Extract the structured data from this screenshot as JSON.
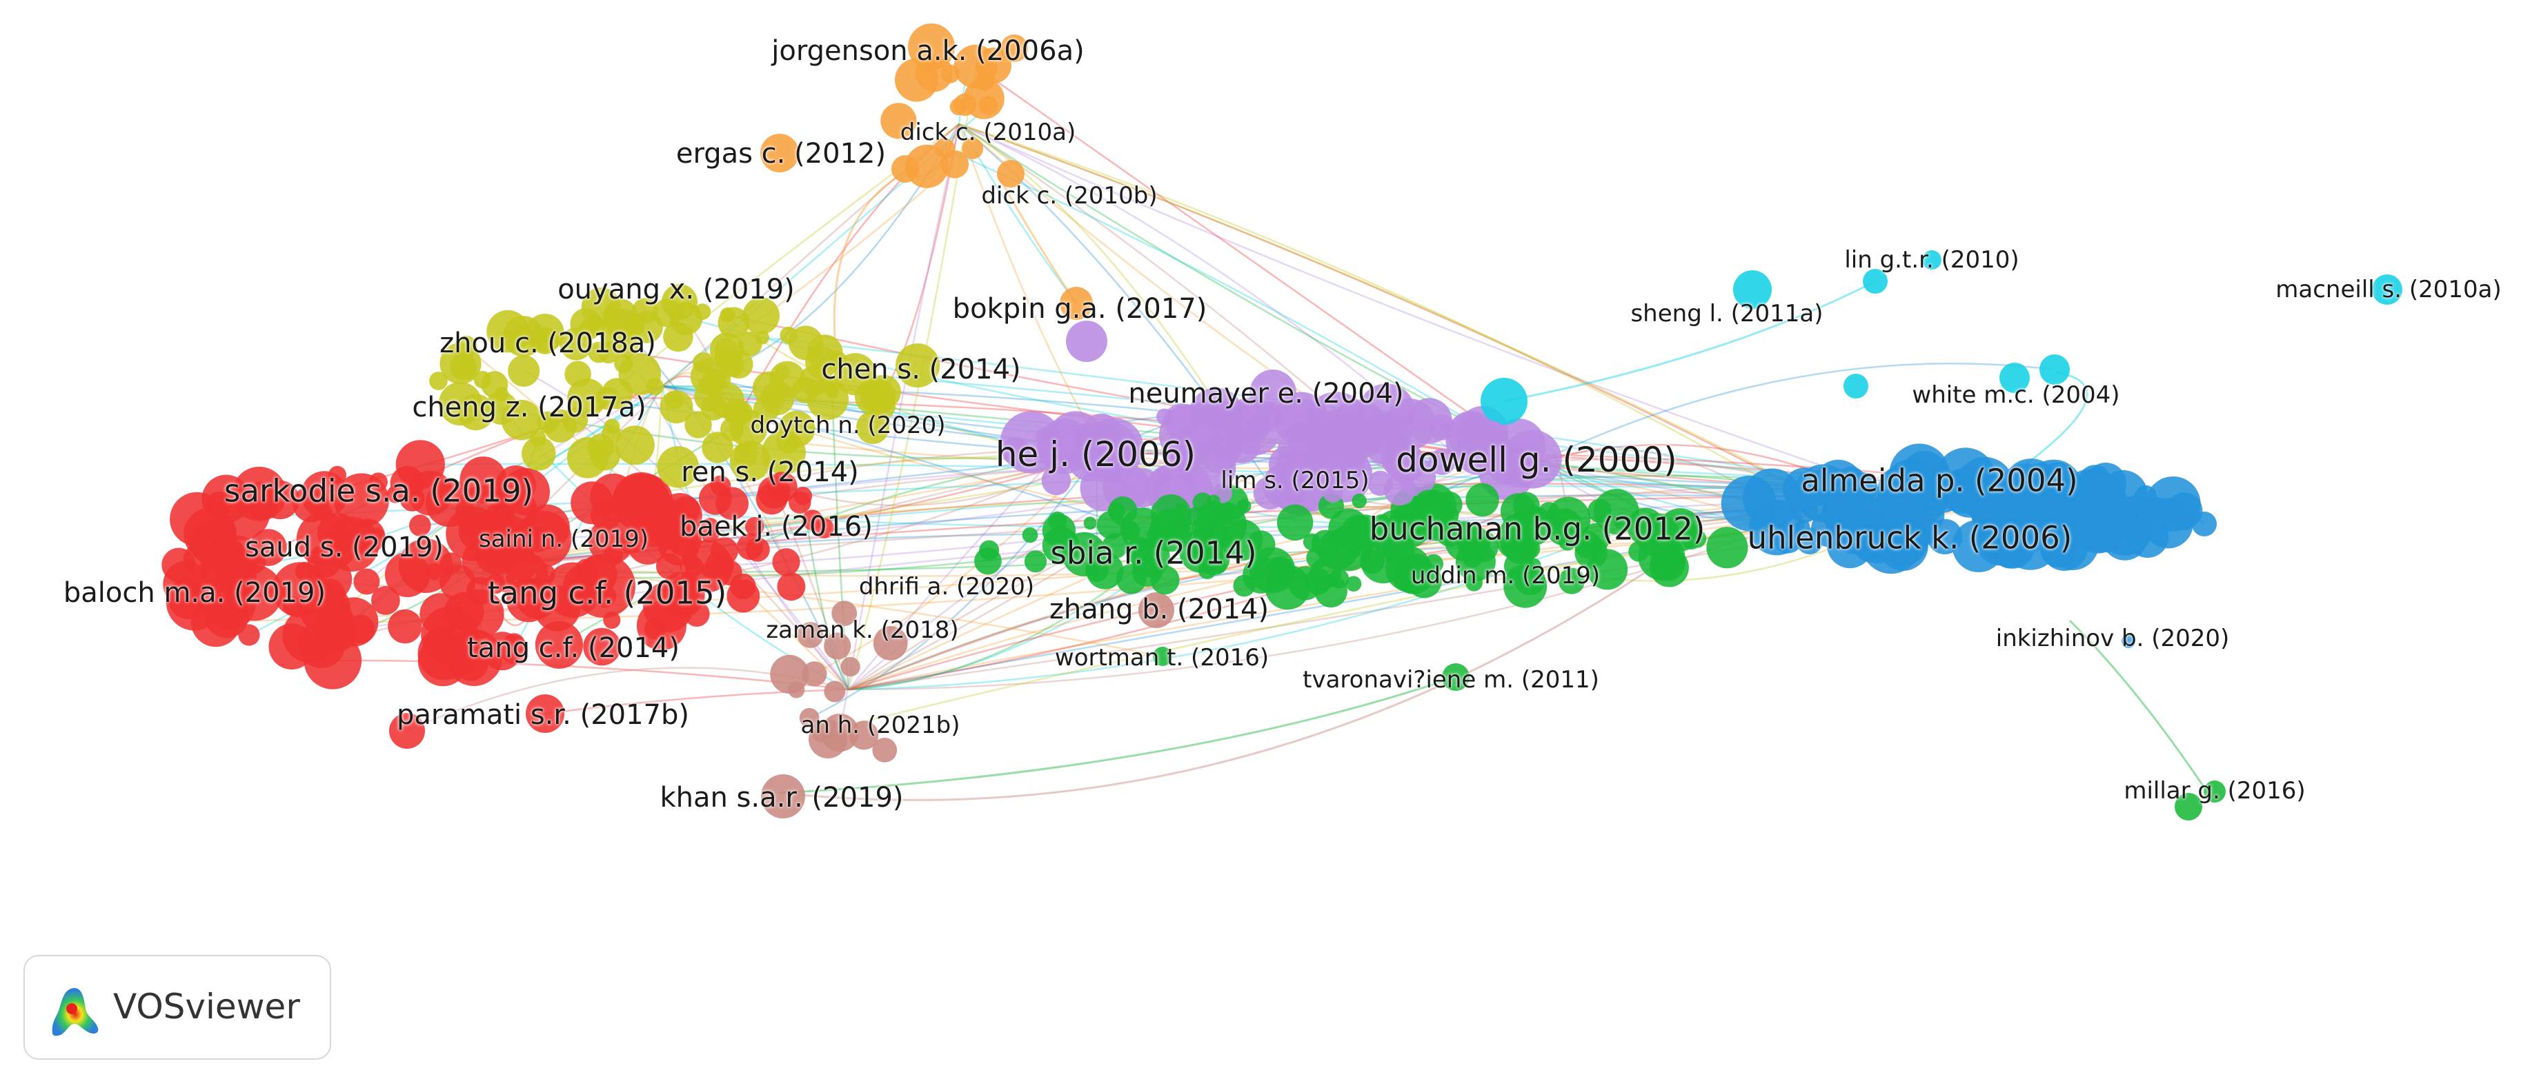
{
  "app": "VOSviewer",
  "logo_icon": "vosviewer-density-logo-icon",
  "cluster_colors": {
    "red": "#f03232",
    "yellow": "#c5c81e",
    "orange": "#f7a23c",
    "purple": "#b98be3",
    "green": "#19b939",
    "blue": "#2493dc",
    "cyan": "#14d2e6",
    "brown": "#c98a82"
  },
  "labels": [
    {
      "text": "jorgenson a.k. (2006a)",
      "cluster": "orange"
    },
    {
      "text": "dick c. (2010a)",
      "cluster": "orange"
    },
    {
      "text": "ergas c. (2012)",
      "cluster": "orange"
    },
    {
      "text": "dick c. (2010b)",
      "cluster": "orange"
    },
    {
      "text": "lin g.t.r. (2010)",
      "cluster": "cyan"
    },
    {
      "text": "macneill s. (2010a)",
      "cluster": "cyan"
    },
    {
      "text": "ouyang x. (2019)",
      "cluster": "yellow"
    },
    {
      "text": "bokpin g.a. (2017)",
      "cluster": "orange"
    },
    {
      "text": "sheng l. (2011a)",
      "cluster": "cyan"
    },
    {
      "text": "zhou c. (2018a)",
      "cluster": "yellow"
    },
    {
      "text": "chen s. (2014)",
      "cluster": "yellow"
    },
    {
      "text": "neumayer e. (2004)",
      "cluster": "purple"
    },
    {
      "text": "white m.c. (2004)",
      "cluster": "cyan"
    },
    {
      "text": "cheng z. (2017a)",
      "cluster": "yellow"
    },
    {
      "text": "doytch n. (2020)",
      "cluster": "yellow"
    },
    {
      "text": "he j. (2006)",
      "cluster": "purple"
    },
    {
      "text": "dowell g. (2000)",
      "cluster": "purple"
    },
    {
      "text": "ren s. (2014)",
      "cluster": "red"
    },
    {
      "text": "almeida p. (2004)",
      "cluster": "blue"
    },
    {
      "text": "sarkodie s.a. (2019)",
      "cluster": "red"
    },
    {
      "text": "lim s. (2015)",
      "cluster": "purple"
    },
    {
      "text": "saini n. (2019)",
      "cluster": "red"
    },
    {
      "text": "baek j. (2016)",
      "cluster": "red"
    },
    {
      "text": "buchanan b.g. (2012)",
      "cluster": "green"
    },
    {
      "text": "uhlenbruck k. (2006)",
      "cluster": "blue"
    },
    {
      "text": "saud s. (2019)",
      "cluster": "red"
    },
    {
      "text": "sbia r. (2014)",
      "cluster": "green"
    },
    {
      "text": "uddin m. (2019)",
      "cluster": "green"
    },
    {
      "text": "dhrifi a. (2020)",
      "cluster": "red"
    },
    {
      "text": "baloch m.a. (2019)",
      "cluster": "red"
    },
    {
      "text": "tang c.f. (2015)",
      "cluster": "red"
    },
    {
      "text": "zhang b. (2014)",
      "cluster": "brown"
    },
    {
      "text": "zaman k. (2018)",
      "cluster": "red"
    },
    {
      "text": "inkizhinov b. (2020)",
      "cluster": "blue"
    },
    {
      "text": "tang c.f. (2014)",
      "cluster": "red"
    },
    {
      "text": "wortman t. (2016)",
      "cluster": "green"
    },
    {
      "text": "tvaronavi?iene m. (2011)",
      "cluster": "green"
    },
    {
      "text": "paramati s.r. (2017b)",
      "cluster": "red"
    },
    {
      "text": "an h. (2021b)",
      "cluster": "brown"
    },
    {
      "text": "khan s.a.r. (2019)",
      "cluster": "brown"
    },
    {
      "text": "millar g. (2016)",
      "cluster": "green"
    }
  ]
}
